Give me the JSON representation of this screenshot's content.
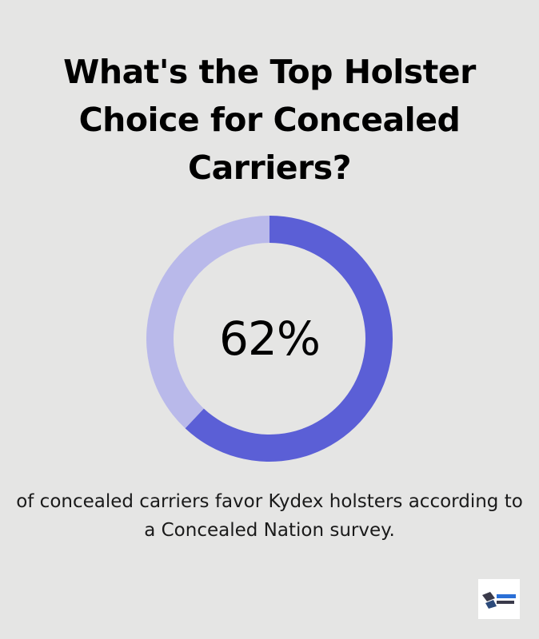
{
  "title": "What's the Top Holster Choice for Concealed Carriers?",
  "chart_data": {
    "type": "pie",
    "variant": "donut",
    "value_label": "62%",
    "slices": [
      {
        "label": "Kydex holsters",
        "value": 62,
        "color": "#5b5fd6"
      },
      {
        "label": "",
        "value": 38,
        "color": "#b9b9ea"
      }
    ],
    "caption": "of concealed carriers favor Kydex holsters according to a Concealed Nation survey."
  },
  "logo": {
    "icon": "brand-logo-icon"
  },
  "colors": {
    "background": "#e5e5e4",
    "accent": "#5b5fd6",
    "track": "#b9b9ea"
  }
}
